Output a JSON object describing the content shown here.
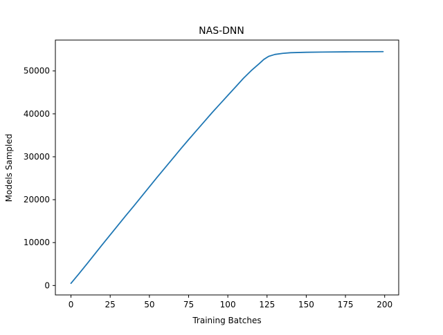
{
  "chart_data": {
    "type": "line",
    "title": "NAS-DNN",
    "xlabel": "Training Batches",
    "ylabel": "Models Sampled",
    "xlim": [
      -9.95,
      208.95
    ],
    "ylim": [
      -2200,
      57200
    ],
    "xticks": [
      0,
      25,
      50,
      75,
      100,
      125,
      150,
      175,
      200
    ],
    "yticks": [
      0,
      10000,
      20000,
      30000,
      40000,
      50000
    ],
    "grid": false,
    "series": [
      {
        "color": "#1f77b4",
        "points": [
          [
            0,
            500
          ],
          [
            5,
            2700
          ],
          [
            10,
            4950
          ],
          [
            15,
            7250
          ],
          [
            20,
            9550
          ],
          [
            25,
            11800
          ],
          [
            30,
            14050
          ],
          [
            35,
            16300
          ],
          [
            40,
            18500
          ],
          [
            45,
            20750
          ],
          [
            50,
            23000
          ],
          [
            55,
            25250
          ],
          [
            60,
            27450
          ],
          [
            65,
            29650
          ],
          [
            70,
            31850
          ],
          [
            75,
            34000
          ],
          [
            80,
            36100
          ],
          [
            85,
            38200
          ],
          [
            90,
            40300
          ],
          [
            95,
            42300
          ],
          [
            100,
            44300
          ],
          [
            105,
            46300
          ],
          [
            110,
            48300
          ],
          [
            115,
            50100
          ],
          [
            120,
            51700
          ],
          [
            123,
            52700
          ],
          [
            126,
            53400
          ],
          [
            130,
            53850
          ],
          [
            135,
            54100
          ],
          [
            140,
            54250
          ],
          [
            150,
            54350
          ],
          [
            160,
            54400
          ],
          [
            175,
            54450
          ],
          [
            190,
            54480
          ],
          [
            199,
            54500
          ]
        ]
      }
    ]
  }
}
